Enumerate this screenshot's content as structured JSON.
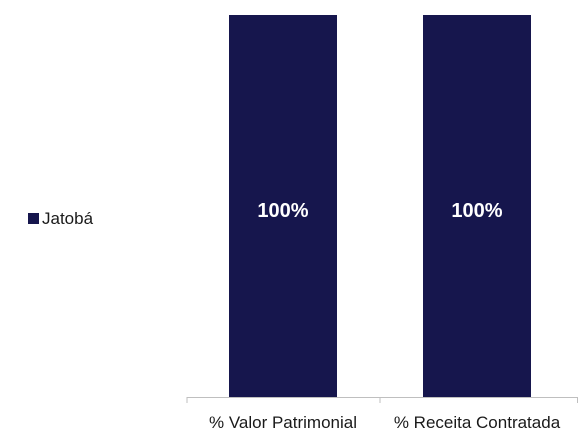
{
  "chart_data": {
    "type": "bar",
    "stacked": true,
    "categories": [
      "% Valor Patrimonial",
      "% Receita Contratada"
    ],
    "series": [
      {
        "name": "Jatobá",
        "values": [
          100,
          100
        ],
        "data_labels": [
          "100%",
          "100%"
        ],
        "color": "#16164d"
      }
    ],
    "ylim": [
      0,
      100
    ],
    "grid": false,
    "legend": "left",
    "label_color": "#ffffff",
    "axis_color": "#bfbfbf",
    "text_color": "#1a1a1a"
  }
}
